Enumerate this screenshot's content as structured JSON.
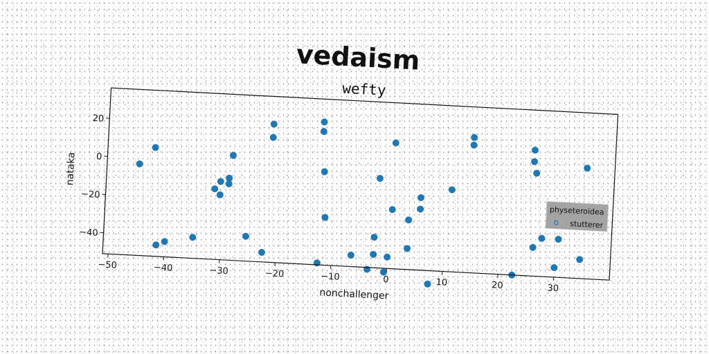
{
  "chart_data": {
    "type": "scatter",
    "suptitle": "vedaism",
    "title": "wefty",
    "xlabel": "nonchallenger",
    "ylabel": "nataka",
    "xlim": [
      -51,
      40
    ],
    "ylim": [
      -51,
      36
    ],
    "xticks": [
      -50,
      -40,
      -30,
      -20,
      -10,
      0,
      10,
      20,
      30
    ],
    "yticks": [
      -40,
      -20,
      0,
      20
    ],
    "legend": {
      "title": "physeteroidea",
      "placement": "right"
    },
    "grid": false,
    "series": [
      {
        "name": "stutterer",
        "color": "#1f77b4",
        "points": [
          [
            -45.2,
            -3
          ],
          [
            -42.5,
            6
          ],
          [
            -41.5,
            -45
          ],
          [
            -40,
            -43
          ],
          [
            -35,
            -40
          ],
          [
            -31.5,
            -14
          ],
          [
            -30.5,
            -17
          ],
          [
            -30.5,
            -10
          ],
          [
            -29,
            -11
          ],
          [
            -29,
            -8
          ],
          [
            -28.5,
            4
          ],
          [
            -25.5,
            -38
          ],
          [
            -22.5,
            -46
          ],
          [
            -21.5,
            14.5
          ],
          [
            -21.5,
            21.5
          ],
          [
            -12.5,
            -50
          ],
          [
            -12.5,
            19
          ],
          [
            -12.5,
            24
          ],
          [
            -12,
            -2
          ],
          [
            -11.5,
            -26
          ],
          [
            -6.5,
            -45
          ],
          [
            -3.5,
            -52
          ],
          [
            -2.5,
            -44
          ],
          [
            -2.5,
            -35
          ],
          [
            -2,
            -4
          ],
          [
            -0.5,
            -53
          ],
          [
            0,
            -45
          ],
          [
            0.5,
            15
          ],
          [
            0.5,
            -20
          ],
          [
            3.5,
            -40
          ],
          [
            3.5,
            -25
          ],
          [
            5.5,
            -19
          ],
          [
            5.5,
            -13
          ],
          [
            7.5,
            -58
          ],
          [
            11,
            -8
          ],
          [
            14.5,
            16
          ],
          [
            14.5,
            20
          ],
          [
            22.5,
            -51
          ],
          [
            25.5,
            9
          ],
          [
            25.5,
            15
          ],
          [
            26,
            3
          ],
          [
            26,
            -36
          ],
          [
            27.5,
            -31
          ],
          [
            30,
            -46
          ],
          [
            30.5,
            -31
          ],
          [
            34.5,
            -41
          ],
          [
            35,
            7
          ]
        ]
      }
    ]
  }
}
